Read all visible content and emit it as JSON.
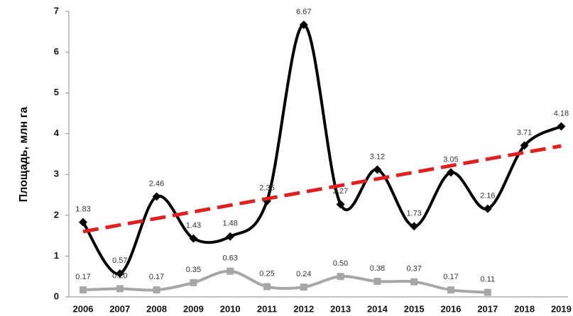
{
  "chart_data": {
    "type": "line",
    "y_label": "Площадь, млн га",
    "categories": [
      "2006",
      "2007",
      "2008",
      "2009",
      "2010",
      "2011",
      "2012",
      "2013",
      "2014",
      "2015",
      "2016",
      "2017",
      "2018",
      "2019"
    ],
    "series": [
      {
        "color": "#000000",
        "marker": "diamond",
        "smooth": true,
        "values": [
          1.83,
          0.57,
          2.46,
          1.43,
          1.48,
          2.35,
          6.67,
          2.27,
          3.12,
          1.73,
          3.05,
          2.16,
          3.71,
          4.18
        ]
      },
      {
        "color": "#a6a6a6",
        "marker": "square",
        "smooth": true,
        "values": [
          0.17,
          0.2,
          0.17,
          0.35,
          0.63,
          0.25,
          0.24,
          0.5,
          0.38,
          0.37,
          0.17,
          0.11,
          null,
          null
        ],
        "value_labels": [
          "0.17",
          "0.20",
          "0.17",
          "0.35",
          "0.63",
          "0.25",
          "0.24",
          "0.50",
          "0.38",
          "0.37",
          "0.17",
          "0.11",
          null,
          null
        ]
      }
    ],
    "trendline": {
      "color": "#e02020",
      "values": [
        1.6,
        3.7
      ]
    },
    "ylim": [
      0,
      7
    ],
    "yticks": [
      0,
      1,
      2,
      3,
      4,
      5,
      6,
      7
    ],
    "grid": false
  }
}
